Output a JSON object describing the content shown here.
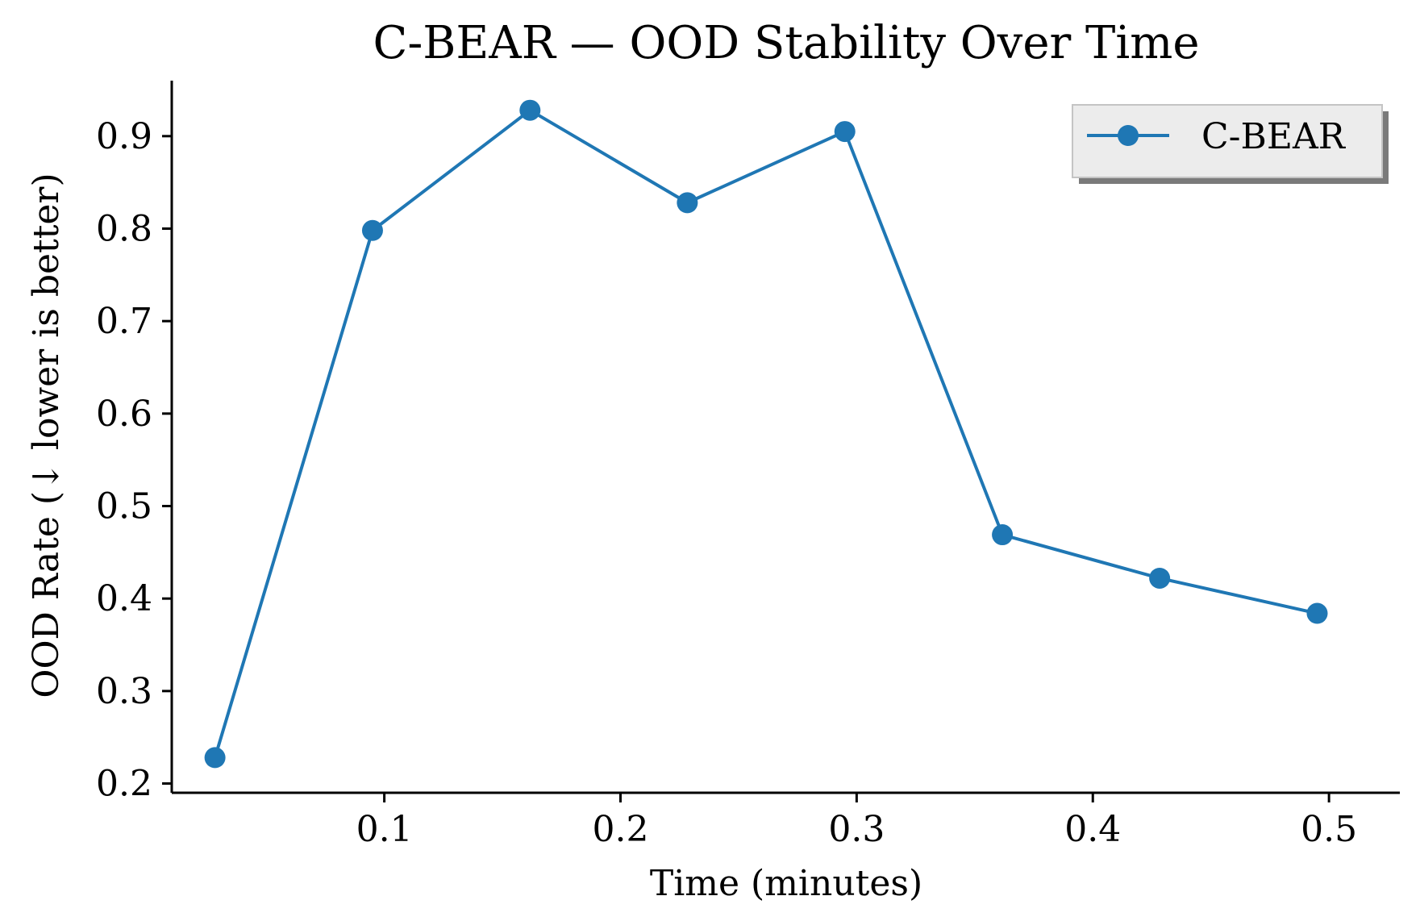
{
  "chart_data": {
    "type": "line",
    "title": "C-BEAR — OOD Stability Over Time",
    "xlabel": "Time (minutes)",
    "ylabel": "OOD Rate (↓ lower is better)",
    "xlim": [
      0.01,
      0.53
    ],
    "ylim": [
      0.19,
      0.96
    ],
    "xticks": [
      0.1,
      0.2,
      0.3,
      0.4,
      0.5
    ],
    "xtick_labels": [
      "0.1",
      "0.2",
      "0.3",
      "0.4",
      "0.5"
    ],
    "yticks": [
      0.2,
      0.3,
      0.4,
      0.5,
      0.6,
      0.7,
      0.8,
      0.9
    ],
    "ytick_labels": [
      "0.2",
      "0.3",
      "0.4",
      "0.5",
      "0.6",
      "0.7",
      "0.8",
      "0.9"
    ],
    "grid": false,
    "legend_position": "top-right",
    "series": [
      {
        "name": "C-BEAR",
        "color": "#1f77b4",
        "marker": "circle",
        "x": [
          0.0283,
          0.095,
          0.1617,
          0.2283,
          0.295,
          0.3617,
          0.4283,
          0.495
        ],
        "y": [
          0.228,
          0.798,
          0.928,
          0.828,
          0.905,
          0.469,
          0.422,
          0.384
        ]
      }
    ]
  }
}
